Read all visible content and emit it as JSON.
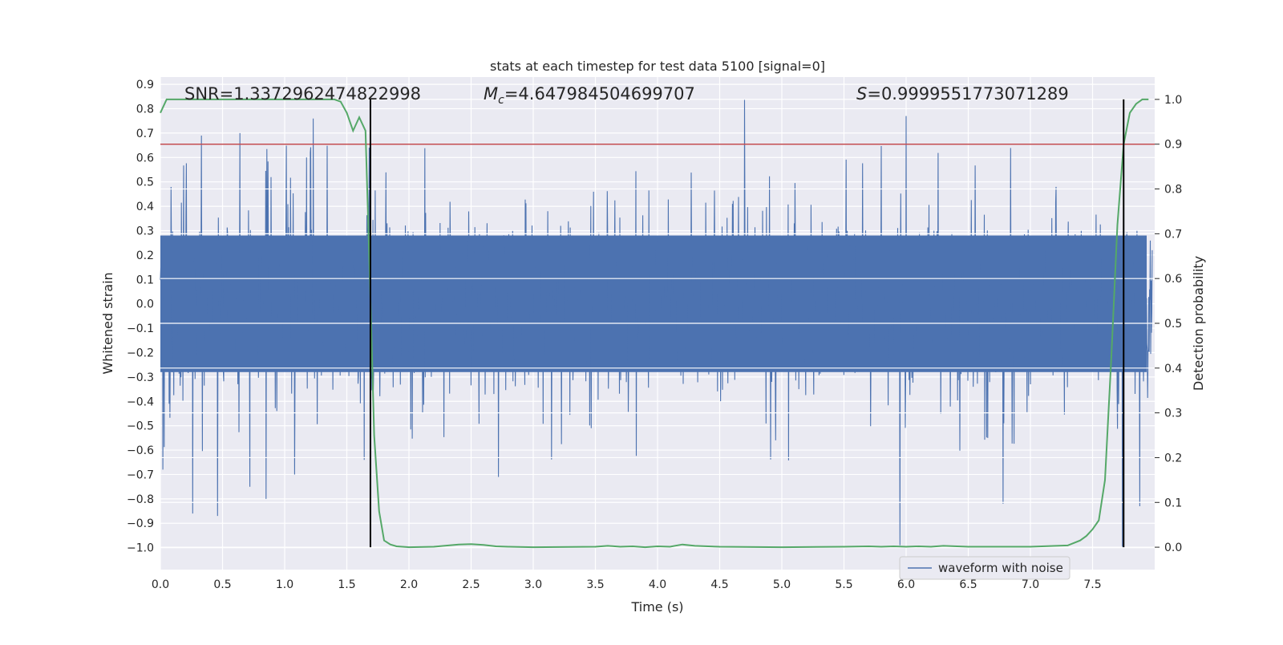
{
  "chart_data": {
    "type": "line",
    "title": "stats at each timestep for test data 5100 [signal=0]",
    "xlabel": "Time (s)",
    "ylabel_left": "Whitened strain",
    "ylabel_right": "Detection probability",
    "xlim": [
      0.0,
      8.0
    ],
    "ylim_left": [
      -1.09,
      0.93
    ],
    "ylim_right": [
      -0.05,
      1.05
    ],
    "x_ticks": [
      "0.0",
      "0.5",
      "1.0",
      "1.5",
      "2.0",
      "2.5",
      "3.0",
      "3.5",
      "4.0",
      "4.5",
      "5.0",
      "5.5",
      "6.0",
      "6.5",
      "7.0",
      "7.5"
    ],
    "y_ticks_left": [
      "0.9",
      "0.8",
      "0.7",
      "0.6",
      "0.5",
      "0.4",
      "0.3",
      "0.2",
      "0.1",
      "0.0",
      "−0.1",
      "−0.2",
      "−0.3",
      "−0.4",
      "−0.5",
      "−0.6",
      "−0.7",
      "−0.8",
      "−0.9",
      "−1.0"
    ],
    "y_ticks_right": [
      "1.0",
      "0.9",
      "0.8",
      "0.7",
      "0.6",
      "0.5",
      "0.4",
      "0.3",
      "0.2",
      "0.1",
      "0.0"
    ],
    "grid": true,
    "legend_position": "lower-right",
    "annotations": {
      "snr_label": "SNR=1.3372962474822998",
      "mc_var": "M",
      "mc_sub": "c",
      "mc_value": "=4.647984504699707",
      "s_var": "S",
      "s_value": "=0.9999551773071289"
    },
    "threshold": {
      "value": 0.9,
      "axis": "right",
      "color": "#c44e52"
    },
    "vertical_lines": [
      1.69,
      7.75
    ],
    "series": [
      {
        "name": "waveform with noise",
        "axis": "left",
        "color": "#4c72b0",
        "style": "noise",
        "noise_core_amplitude": 0.28,
        "extremes": [
          {
            "t": 0.02,
            "v": -0.68
          },
          {
            "t": 0.26,
            "v": -0.86
          },
          {
            "t": 0.33,
            "v": 0.69
          },
          {
            "t": 0.46,
            "v": -0.87
          },
          {
            "t": 0.64,
            "v": 0.7
          },
          {
            "t": 0.72,
            "v": -0.75
          },
          {
            "t": 0.85,
            "v": -0.8
          },
          {
            "t": 1.08,
            "v": -0.7
          },
          {
            "t": 1.23,
            "v": 0.76
          },
          {
            "t": 1.64,
            "v": -0.64
          },
          {
            "t": 1.68,
            "v": 0.64
          },
          {
            "t": 2.72,
            "v": -0.71
          },
          {
            "t": 4.7,
            "v": 0.84
          },
          {
            "t": 4.95,
            "v": -0.56
          },
          {
            "t": 5.95,
            "v": -0.99
          },
          {
            "t": 6.0,
            "v": 0.77
          },
          {
            "t": 6.78,
            "v": -0.82
          },
          {
            "t": 7.74,
            "v": -1.0
          },
          {
            "t": 7.75,
            "v": 0.83
          },
          {
            "t": 7.88,
            "v": -0.83
          }
        ]
      },
      {
        "name": "",
        "axis": "right",
        "color": "#55a868",
        "style": "line",
        "x": [
          0.0,
          0.05,
          0.1,
          1.3,
          1.4,
          1.45,
          1.5,
          1.55,
          1.6,
          1.65,
          1.69,
          1.72,
          1.76,
          1.8,
          1.85,
          1.9,
          2.0,
          2.2,
          2.4,
          2.5,
          2.6,
          2.7,
          2.8,
          3.0,
          3.5,
          3.6,
          3.7,
          3.8,
          3.9,
          4.0,
          4.1,
          4.2,
          4.3,
          4.5,
          5.0,
          5.5,
          5.7,
          5.8,
          5.9,
          6.0,
          6.1,
          6.2,
          6.3,
          6.5,
          7.0,
          7.3,
          7.4,
          7.45,
          7.5,
          7.55,
          7.6,
          7.65,
          7.7,
          7.75,
          7.8,
          7.85,
          7.9,
          7.95
        ],
        "y": [
          0.97,
          1.0,
          1.0,
          1.0,
          1.0,
          0.995,
          0.97,
          0.93,
          0.96,
          0.93,
          0.56,
          0.25,
          0.08,
          0.015,
          0.006,
          0.002,
          0.0,
          0.001,
          0.006,
          0.007,
          0.005,
          0.002,
          0.001,
          0.0,
          0.001,
          0.003,
          0.001,
          0.002,
          0.0,
          0.002,
          0.001,
          0.006,
          0.003,
          0.001,
          0.0,
          0.001,
          0.002,
          0.001,
          0.002,
          0.001,
          0.002,
          0.001,
          0.003,
          0.001,
          0.001,
          0.004,
          0.015,
          0.025,
          0.04,
          0.06,
          0.15,
          0.42,
          0.72,
          0.9,
          0.97,
          0.99,
          1.0,
          1.0
        ]
      }
    ]
  }
}
